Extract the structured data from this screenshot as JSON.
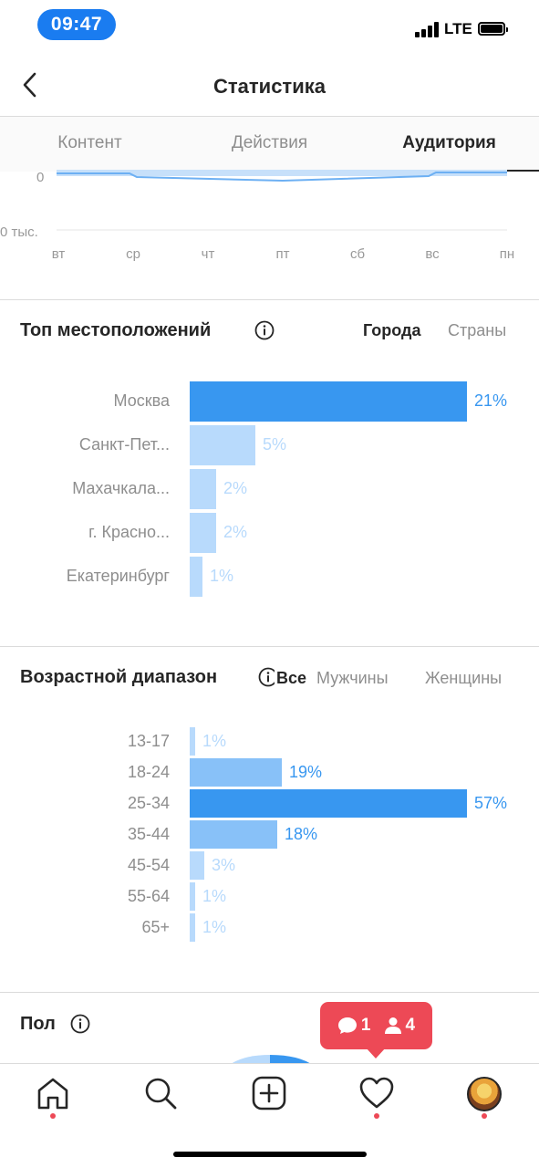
{
  "status_bar": {
    "time": "09:47",
    "network": "LTE"
  },
  "header": {
    "title": "Статистика"
  },
  "tabs": [
    {
      "label": "Контент",
      "active": false
    },
    {
      "label": "Действия",
      "active": false
    },
    {
      "label": "Аудитория",
      "active": true
    }
  ],
  "top_chart": {
    "y_labels": [
      "0",
      "0 тыс."
    ],
    "days": [
      "вт",
      "ср",
      "чт",
      "пт",
      "сб",
      "вс",
      "пн"
    ]
  },
  "locations": {
    "title": "Топ местоположений",
    "filters": [
      {
        "label": "Города",
        "active": true
      },
      {
        "label": "Страны",
        "active": false
      }
    ],
    "items": [
      {
        "label": "Москва",
        "value": 21,
        "display": "21%",
        "highlight": true
      },
      {
        "label": "Санкт-Пет...",
        "value": 5,
        "display": "5%",
        "highlight": false
      },
      {
        "label": "Махачкала...",
        "value": 2,
        "display": "2%",
        "highlight": false
      },
      {
        "label": "г. Красно...",
        "value": 2,
        "display": "2%",
        "highlight": false
      },
      {
        "label": "Екатеринбург",
        "value": 1,
        "display": "1%",
        "highlight": false
      }
    ]
  },
  "age": {
    "title": "Возрастной диапазон",
    "filters": [
      {
        "label": "Все",
        "active": true
      },
      {
        "label": "Мужчины",
        "active": false
      },
      {
        "label": "Женщины",
        "active": false
      }
    ],
    "items": [
      {
        "label": "13-17",
        "value": 1,
        "display": "1%",
        "tone": "light"
      },
      {
        "label": "18-24",
        "value": 19,
        "display": "19%",
        "tone": "mid"
      },
      {
        "label": "25-34",
        "value": 57,
        "display": "57%",
        "tone": "dark"
      },
      {
        "label": "35-44",
        "value": 18,
        "display": "18%",
        "tone": "mid"
      },
      {
        "label": "45-54",
        "value": 3,
        "display": "3%",
        "tone": "light"
      },
      {
        "label": "55-64",
        "value": 1,
        "display": "1%",
        "tone": "light"
      },
      {
        "label": "65+",
        "value": 1,
        "display": "1%",
        "tone": "light"
      }
    ]
  },
  "gender": {
    "title": "Пол"
  },
  "notification": {
    "comments": "1",
    "followers": "4"
  },
  "colors": {
    "accent": "#3897f0",
    "bar_mid": "#88c1f8",
    "bar_light": "#b8dafc",
    "label_light": "#b8dafc",
    "notification": "#ed4956",
    "time_pill": "#1a7cf0"
  },
  "nav": [
    "home-icon",
    "search-icon",
    "add-icon",
    "heart-icon",
    "profile-avatar"
  ]
}
